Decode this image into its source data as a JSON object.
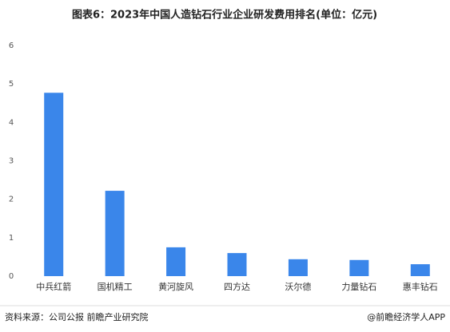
{
  "chart_data": {
    "type": "bar",
    "title": "图表6：2023年中国人造钻石行业企业研发费用排名(单位：亿元)",
    "categories": [
      "中兵红箭",
      "国机精工",
      "黄河旋风",
      "四方达",
      "沃尔德",
      "力量钻石",
      "惠丰钻石"
    ],
    "values": [
      4.77,
      2.22,
      0.75,
      0.6,
      0.44,
      0.42,
      0.31
    ],
    "color": "#3a86ea",
    "ylim": [
      0,
      6
    ],
    "yticks": [
      0,
      1,
      2,
      3,
      4,
      5,
      6
    ],
    "grid": false
  },
  "footer": {
    "source": "资料来源：公司公报 前瞻产业研究院",
    "brand": "@前瞻经济学人APP"
  }
}
